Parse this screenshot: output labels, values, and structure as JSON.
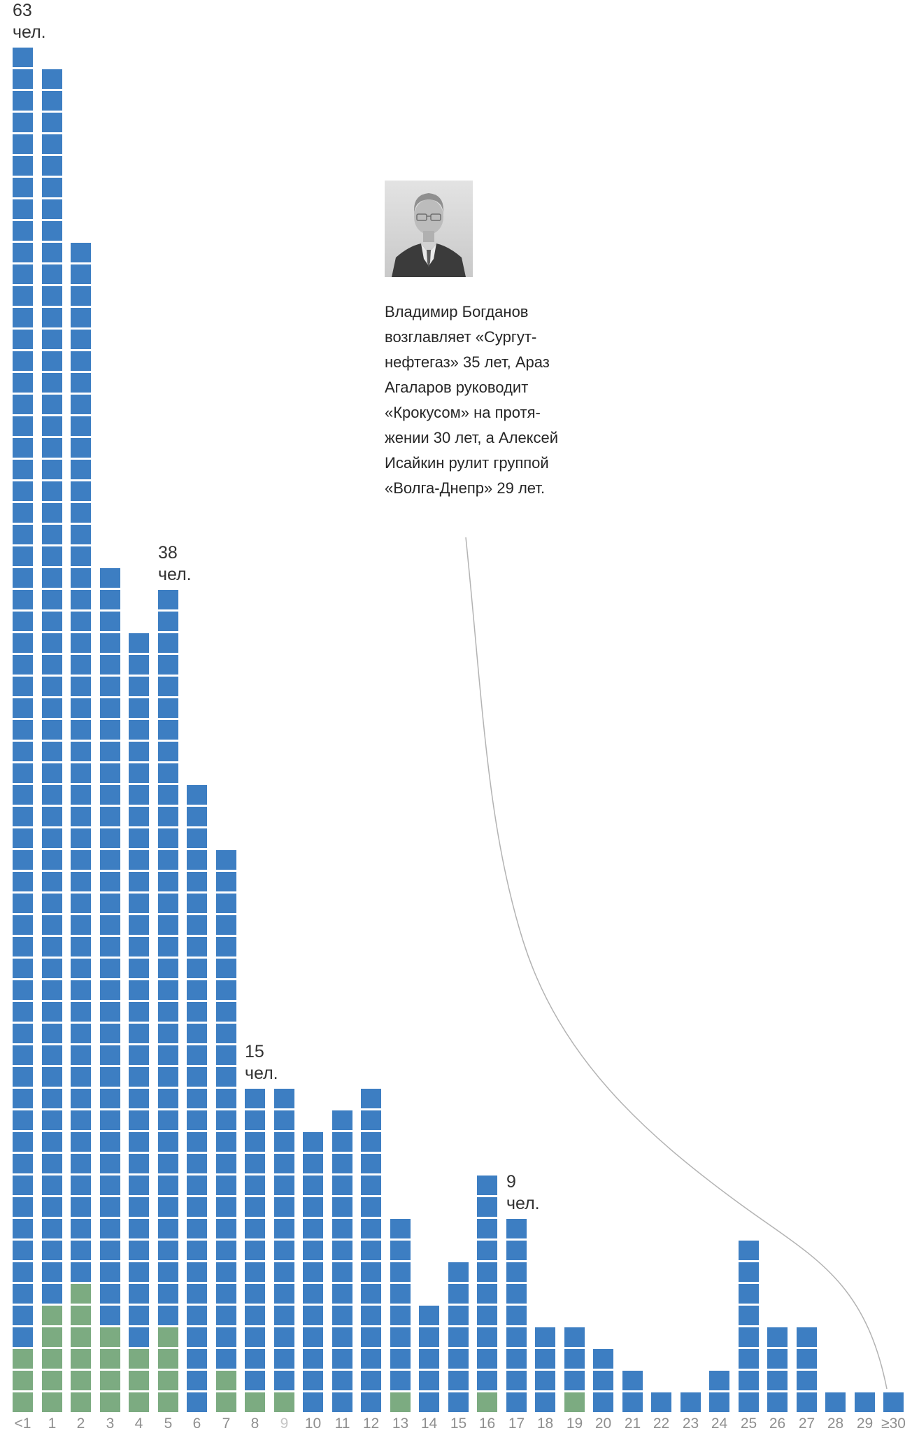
{
  "photo": {
    "semantic": "black-and-white portrait photo of a man in a dark suit with glasses"
  },
  "caption": {
    "lines": [
      "Владимир Богданов",
      "возглавляет «Сургут-",
      "нефтегаз» 35 лет, Араз",
      "Агаларов руководит",
      "«Крокусом» на протя-",
      "жении 30 лет, а Алексей",
      "Исайкин рулит группой",
      "«Волга-Днепр» 29 лет."
    ]
  },
  "chart_data": {
    "type": "bar",
    "subtype": "unit-stacked-waffle-bars",
    "title": "",
    "xlabel": "",
    "ylabel": "",
    "unit": "чел.",
    "ylim": [
      0,
      63
    ],
    "grid": false,
    "categories": [
      "<1",
      "1",
      "2",
      "3",
      "4",
      "5",
      "6",
      "7",
      "8",
      "9",
      "10",
      "11",
      "12",
      "13",
      "14",
      "15",
      "16",
      "17",
      "18",
      "19",
      "20",
      "21",
      "22",
      "23",
      "24",
      "25",
      "26",
      "27",
      "28",
      "29",
      "≥30"
    ],
    "series": [
      {
        "name": "green-units",
        "color": "#7cab81",
        "values": [
          3,
          5,
          6,
          4,
          3,
          4,
          0,
          2,
          1,
          1,
          0,
          0,
          0,
          1,
          0,
          0,
          1,
          0,
          0,
          1,
          0,
          0,
          0,
          0,
          0,
          0,
          0,
          0,
          0,
          0,
          0
        ]
      },
      {
        "name": "blue-units",
        "color": "#3d7ec2",
        "values": [
          60,
          57,
          48,
          35,
          33,
          34,
          29,
          24,
          14,
          14,
          13,
          14,
          15,
          8,
          5,
          7,
          10,
          9,
          4,
          3,
          3,
          2,
          1,
          1,
          2,
          8,
          4,
          4,
          1,
          1,
          1
        ]
      }
    ],
    "totals": [
      63,
      62,
      54,
      39,
      36,
      38,
      29,
      26,
      15,
      15,
      13,
      14,
      15,
      9,
      5,
      7,
      11,
      9,
      4,
      4,
      3,
      2,
      1,
      1,
      2,
      8,
      4,
      4,
      1,
      1,
      1
    ],
    "annotations": [
      {
        "barIndex": 0,
        "value": "63",
        "unit": "чел."
      },
      {
        "barIndex": 5,
        "value": "38",
        "unit": "чел."
      },
      {
        "barIndex": 8,
        "value": "15",
        "unit": "чел."
      },
      {
        "barIndex": 17,
        "value": "9",
        "unit": "чел."
      }
    ],
    "muted_x_labels": [
      "9"
    ],
    "colors": {
      "blue": "#3d7ec2",
      "green": "#7cab81",
      "axis_label": "#8f8f8f",
      "muted_axis_label": "#c6c6c6",
      "annotation_text": "#333333",
      "leader_line": "#b3b3b3"
    }
  }
}
